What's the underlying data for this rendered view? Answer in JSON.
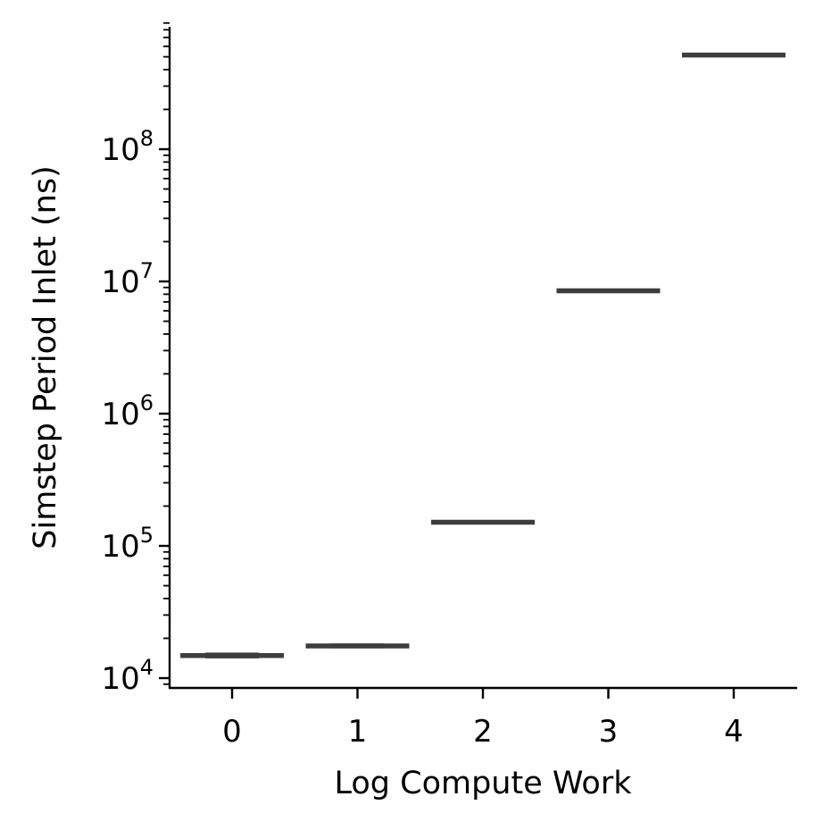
{
  "chart_data": {
    "type": "box",
    "xlabel": "Log Compute Work",
    "ylabel": "Simstep Period Inlet (ns)",
    "yscale": "log",
    "ylim": [
      8500,
      900000000
    ],
    "categories": [
      "0",
      "1",
      "2",
      "3",
      "4"
    ],
    "y_tick_exponents": [
      4,
      5,
      6,
      7,
      8
    ],
    "y_tick_base": "10",
    "boxes": [
      {
        "category": "0",
        "q1": 14100,
        "median": 14800,
        "q3": 15600
      },
      {
        "category": "1",
        "q1": 16800,
        "median": 17500,
        "q3": 18300
      },
      {
        "category": "2",
        "q1": 148000,
        "median": 151000,
        "q3": 154000
      },
      {
        "category": "3",
        "q1": 8200000,
        "median": 8500000,
        "q3": 8800000
      },
      {
        "category": "4",
        "q1": 510000000,
        "median": 515000000,
        "q3": 520000000
      }
    ],
    "box_color": "#3d3d3d",
    "grid": false,
    "legend": "none"
  }
}
